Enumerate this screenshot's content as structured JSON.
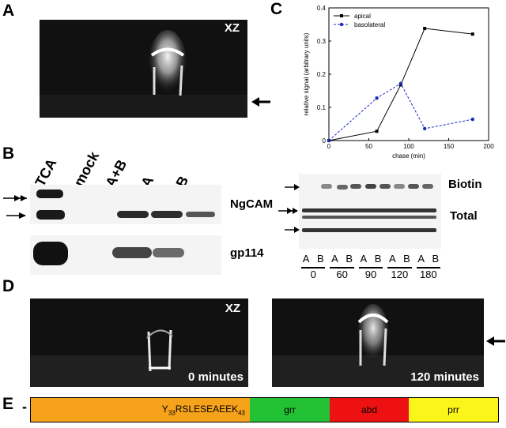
{
  "panel_a": {
    "letter": "A",
    "view": "XZ"
  },
  "panel_b": {
    "letter": "B",
    "lane_labels": [
      "TCA",
      "mock",
      "A+B",
      "A",
      "B"
    ],
    "protein_top": "NgCAM",
    "protein_bottom": "gp114"
  },
  "panel_c": {
    "letter": "C",
    "blot_labels": {
      "biotin": "Biotin",
      "total": "Total"
    },
    "lanes": [
      "A",
      "B",
      "A",
      "B",
      "A",
      "B",
      "A",
      "B",
      "A",
      "B"
    ],
    "timepoints": [
      "0",
      "60",
      "90",
      "120",
      "180"
    ]
  },
  "panel_d": {
    "letter": "D",
    "view": "XZ",
    "left_time": "0 minutes",
    "right_time": "120 minutes"
  },
  "panel_e": {
    "letter": "E",
    "minus": "-",
    "segments": [
      {
        "label_pre": "Y",
        "sub1": "33",
        "label_mid": "RSLESEAEEK",
        "sub2": "43",
        "color": "#f6a21a"
      },
      {
        "label": "grr",
        "color": "#22c033"
      },
      {
        "label": "abd",
        "color": "#ee1111"
      },
      {
        "label": "prr",
        "color": "#fbf51a"
      }
    ]
  },
  "chart_data": {
    "type": "line",
    "xlabel": "chase (min)",
    "ylabel": "relative signal (arbitrary units)",
    "xlim": [
      0,
      200
    ],
    "ylim": [
      0,
      0.4
    ],
    "xticks": [
      0,
      50,
      100,
      150,
      200
    ],
    "yticks": [
      0,
      0.1,
      0.2,
      0.3,
      0.4
    ],
    "legend_position": "top-left",
    "series": [
      {
        "name": "apical",
        "color": "#000000",
        "marker": "square",
        "dash": false,
        "x": [
          0,
          60,
          90,
          120,
          180
        ],
        "y": [
          0,
          0.028,
          0.168,
          0.338,
          0.321
        ]
      },
      {
        "name": "basolateral",
        "color": "#1b2bbf",
        "marker": "circle",
        "dash": true,
        "x": [
          0,
          60,
          90,
          120,
          180
        ],
        "y": [
          0,
          0.128,
          0.172,
          0.036,
          0.064
        ]
      }
    ]
  }
}
